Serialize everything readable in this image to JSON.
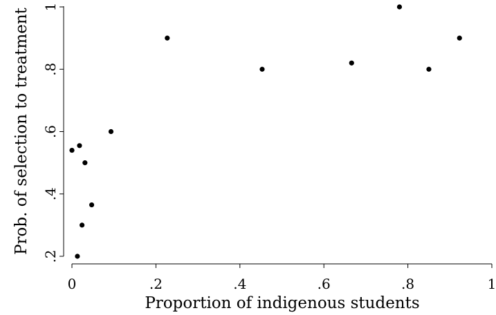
{
  "chart_data": {
    "type": "scatter",
    "title": "",
    "xlabel": "Proportion of indigenous students",
    "ylabel": "Prob. of selection to treatment",
    "xlim": [
      0,
      1
    ],
    "ylim": [
      0.2,
      1
    ],
    "grid": false,
    "x_ticks": [
      {
        "value": 0,
        "label": "0"
      },
      {
        "value": 0.2,
        "label": ".2"
      },
      {
        "value": 0.4,
        "label": ".4"
      },
      {
        "value": 0.6,
        "label": ".6"
      },
      {
        "value": 0.8,
        "label": ".8"
      },
      {
        "value": 1,
        "label": "1"
      }
    ],
    "y_ticks": [
      {
        "value": 0.2,
        "label": ".2"
      },
      {
        "value": 0.4,
        "label": ".4"
      },
      {
        "value": 0.6,
        "label": ".6"
      },
      {
        "value": 0.8,
        "label": ".8"
      },
      {
        "value": 1,
        "label": "1"
      }
    ],
    "series": [
      {
        "marker_color": "#000000",
        "points": [
          {
            "x": 0.0,
            "y": 0.54
          },
          {
            "x": 0.013,
            "y": 0.2
          },
          {
            "x": 0.018,
            "y": 0.555
          },
          {
            "x": 0.024,
            "y": 0.3
          },
          {
            "x": 0.031,
            "y": 0.5
          },
          {
            "x": 0.047,
            "y": 0.365
          },
          {
            "x": 0.093,
            "y": 0.6
          },
          {
            "x": 0.227,
            "y": 0.9
          },
          {
            "x": 0.453,
            "y": 0.8
          },
          {
            "x": 0.666,
            "y": 0.82
          },
          {
            "x": 0.78,
            "y": 1.0
          },
          {
            "x": 0.85,
            "y": 0.8
          },
          {
            "x": 0.923,
            "y": 0.9
          }
        ]
      }
    ]
  }
}
